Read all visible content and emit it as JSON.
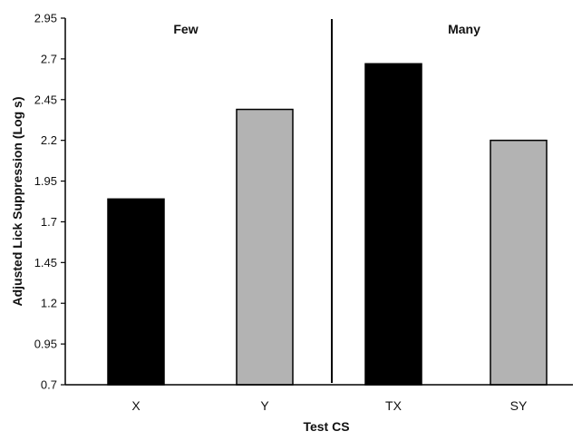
{
  "chart_data": {
    "type": "bar",
    "categories": [
      "X",
      "Y",
      "TX",
      "SY"
    ],
    "values": [
      1.84,
      2.39,
      2.67,
      2.2
    ],
    "bar_colors": [
      "#000000",
      "#b3b3b3",
      "#000000",
      "#b3b3b3"
    ],
    "bar_stroke": "#000000",
    "xlabel": "Test CS",
    "ylabel": "Adjusted Lick Suppression (Log s)",
    "ylim": [
      0.7,
      2.95
    ],
    "yticks": [
      0.7,
      0.95,
      1.2,
      1.45,
      1.7,
      1.95,
      2.2,
      2.45,
      2.7,
      2.95
    ],
    "ytick_labels": [
      "0.7",
      "0.95",
      "1.2",
      "1.45",
      "1.7",
      "1.95",
      "2.2",
      "2.45",
      "2.7",
      "2.95"
    ],
    "grid": false,
    "panels": [
      {
        "label": "Few",
        "categories": [
          "X",
          "Y"
        ]
      },
      {
        "label": "Many",
        "categories": [
          "TX",
          "SY"
        ]
      }
    ]
  }
}
